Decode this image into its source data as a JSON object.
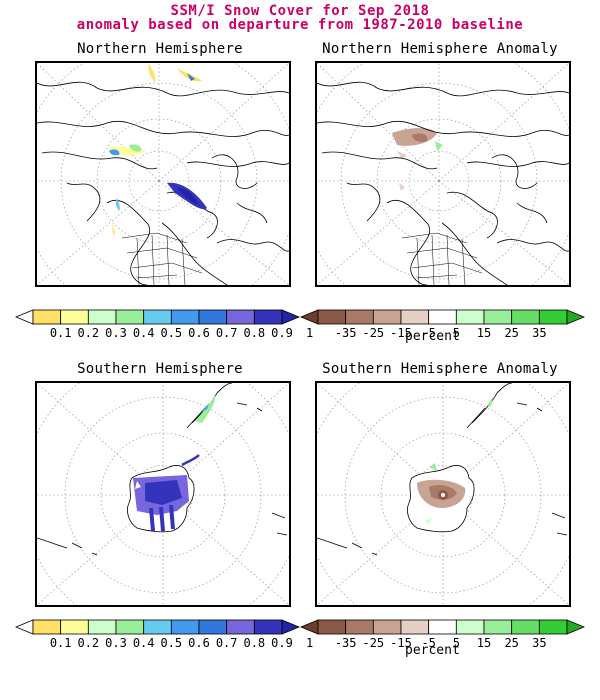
{
  "title": {
    "line1": "SSM/I Snow Cover for Sep 2018",
    "line2": "anomaly based on departure from 1987-2010 baseline"
  },
  "panels": {
    "nh": {
      "title": "Northern Hemisphere"
    },
    "nh_anomaly": {
      "title": "Northern Hemisphere Anomaly"
    },
    "sh": {
      "title": "Southern Hemisphere"
    },
    "sh_anomaly": {
      "title": "Southern Hemisphere Anomaly"
    }
  },
  "colorbars": {
    "cover": {
      "ticks": [
        "0.1",
        "0.2",
        "0.3",
        "0.4",
        "0.5",
        "0.6",
        "0.7",
        "0.8",
        "0.9",
        "1"
      ],
      "colors": [
        "#ffffff",
        "#ffe066",
        "#ffff99",
        "#ccffcc",
        "#99ee99",
        "#66ccee",
        "#4499ee",
        "#3377dd",
        "#7766dd",
        "#3333bb",
        "#2222aa"
      ]
    },
    "anomaly": {
      "ticks": [
        "-35",
        "-25",
        "-15",
        "-5",
        "5",
        "15",
        "25",
        "35"
      ],
      "unit": "percent",
      "colors": [
        "#6b3f2a",
        "#8a5a46",
        "#a97a66",
        "#c9a394",
        "#e6cfc5",
        "#ffffff",
        "#ccffcc",
        "#99ee99",
        "#66dd66",
        "#33cc33",
        "#22aa22"
      ]
    }
  }
}
